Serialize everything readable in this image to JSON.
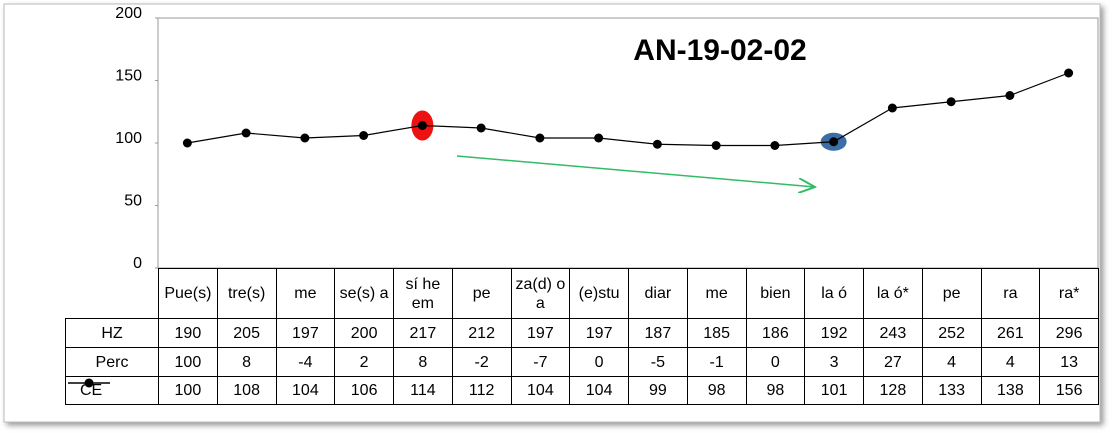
{
  "chart_data": {
    "type": "line",
    "title": "AN-19-02-02",
    "categories": [
      "Pue(s)",
      "tre(s)",
      "me",
      "se(s) a",
      "sí he em",
      "pe",
      "za(d) o a",
      "(e)stu",
      "diar",
      "me",
      "bien",
      "la ó",
      "la ó*",
      "pe",
      "ra",
      "ra*"
    ],
    "series": [
      {
        "name": "CE",
        "color": "#000000",
        "values": [
          100,
          108,
          104,
          106,
          114,
          112,
          104,
          104,
          99,
          98,
          98,
          101,
          128,
          133,
          138,
          156
        ]
      }
    ],
    "table_rows": [
      {
        "label": "HZ",
        "values": [
          190,
          205,
          197,
          200,
          217,
          212,
          197,
          197,
          187,
          185,
          186,
          192,
          243,
          252,
          261,
          296
        ]
      },
      {
        "label": "Perc",
        "values": [
          100,
          8,
          -4,
          2,
          8,
          -2,
          -7,
          0,
          -5,
          -1,
          0,
          3,
          27,
          4,
          4,
          13
        ]
      }
    ],
    "ylim": [
      0,
      200
    ],
    "yticks": [
      0,
      50,
      100,
      150,
      200
    ],
    "grid": false
  }
}
